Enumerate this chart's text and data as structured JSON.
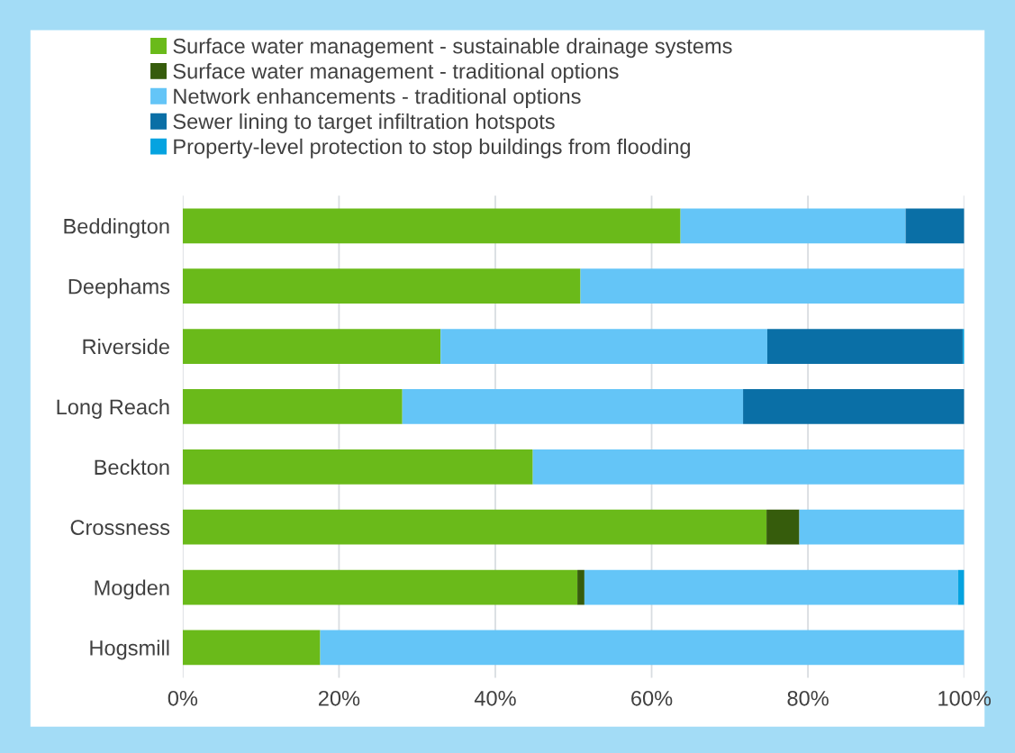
{
  "chart_data": {
    "type": "bar",
    "orientation": "horizontal",
    "stacked": true,
    "categories": [
      "Beddington",
      "Deephams",
      "Riverside",
      "Long Reach",
      "Beckton",
      "Crossness",
      "Mogden",
      "Hogsmill"
    ],
    "series": [
      {
        "name": "Surface water management - sustainable drainage systems",
        "color": "#6aba1a",
        "values": [
          63.7,
          50.9,
          33.0,
          28.1,
          44.8,
          74.7,
          50.5,
          17.6
        ]
      },
      {
        "name": "Surface water management - traditional options",
        "color": "#365c0c",
        "values": [
          0,
          0,
          0,
          0,
          0,
          4.2,
          0.9,
          0
        ]
      },
      {
        "name": "Network enhancements - traditional options",
        "color": "#64c5f7",
        "values": [
          28.8,
          49.1,
          41.8,
          43.6,
          55.2,
          21.1,
          47.8,
          82.4
        ]
      },
      {
        "name": "Sewer lining to target infiltration hotspots",
        "color": "#0a6fa6",
        "values": [
          7.5,
          0,
          25.0,
          28.3,
          0,
          0,
          0,
          0
        ]
      },
      {
        "name": "Property-level protection to stop buildings from flooding",
        "color": "#05a3e0",
        "values": [
          0,
          0,
          0.2,
          0,
          0,
          0,
          0.8,
          0
        ]
      }
    ],
    "xlim": [
      0,
      100
    ],
    "xticks": [
      {
        "value": 0,
        "label": "0%"
      },
      {
        "value": 20,
        "label": "20%"
      },
      {
        "value": 40,
        "label": "40%"
      },
      {
        "value": 60,
        "label": "60%"
      },
      {
        "value": 80,
        "label": "80%"
      },
      {
        "value": 100,
        "label": "100%"
      }
    ],
    "grid": "x",
    "legend": "top"
  }
}
